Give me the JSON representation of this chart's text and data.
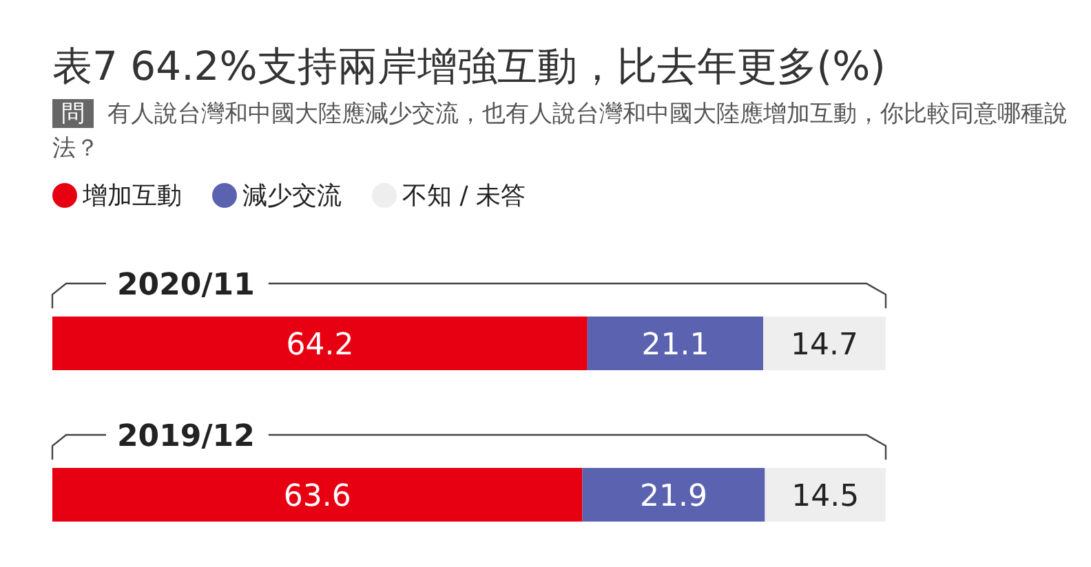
{
  "chart_data": {
    "type": "bar",
    "orientation": "horizontal",
    "stacked": true,
    "title": "表7 64.2%支持兩岸增強互動，比去年更多(%)",
    "subtitle": "有人說台灣和中國大陸應減少交流，也有人說台灣和中國大陸應增加互動，你比較同意哪種說法？",
    "annotations": [
      "問"
    ],
    "categories": [
      "2020/11",
      "2019/12"
    ],
    "series": [
      {
        "name": "增加互動",
        "color": "#e60012",
        "values": [
          64.2,
          63.6
        ]
      },
      {
        "name": "減少交流",
        "color": "#5b63b0",
        "values": [
          21.1,
          21.9
        ]
      },
      {
        "name": "不知 / 未答",
        "color": "#eeeeee",
        "values": [
          14.7,
          14.5
        ]
      }
    ],
    "data_labels": true,
    "legend": "top left"
  }
}
